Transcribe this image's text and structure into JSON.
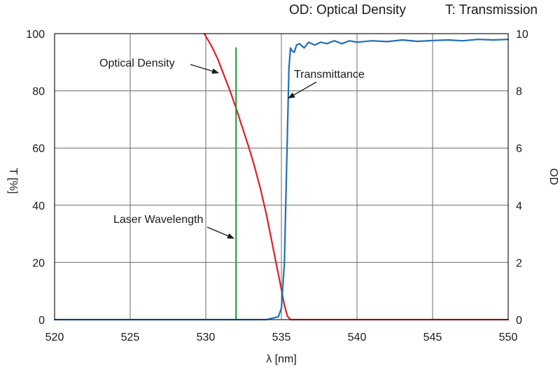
{
  "header": {
    "od_note": "OD: Optical Density",
    "t_note": "T: Transmission"
  },
  "chart_data": {
    "type": "line",
    "title": "",
    "xlabel": "λ [nm]",
    "ylabel_left": "T [%]",
    "ylabel_right": "OD",
    "xlim": [
      520,
      550
    ],
    "ylim_left": [
      0,
      100
    ],
    "ylim_right": [
      0,
      10
    ],
    "x_ticks": [
      "520",
      "525",
      "530",
      "535",
      "540",
      "545",
      "550"
    ],
    "y_left_ticks": [
      "0",
      "20",
      "40",
      "60",
      "80",
      "100"
    ],
    "y_right_ticks": [
      "0",
      "2",
      "4",
      "6",
      "8",
      "10"
    ],
    "grid": true,
    "series": [
      {
        "name": "Optical Density",
        "axis": "right",
        "color": "#e31e24",
        "x": [
          529.9,
          530.4,
          530.8,
          531.2,
          531.6,
          532.0,
          532.4,
          532.8,
          533.2,
          533.6,
          534.0,
          534.4,
          534.7,
          535.0,
          535.2,
          535.4,
          535.6,
          536.0,
          540.0,
          550.0
        ],
        "y": [
          10.0,
          9.55,
          9.1,
          8.55,
          8.0,
          7.4,
          6.75,
          6.1,
          5.4,
          4.6,
          3.7,
          2.65,
          1.85,
          1.05,
          0.5,
          0.12,
          0.0,
          0.0,
          0.0,
          0.0
        ]
      },
      {
        "name": "Transmittance",
        "axis": "left",
        "color": "#1f6fb8",
        "x": [
          520.0,
          534.0,
          534.8,
          535.0,
          535.2,
          535.35,
          535.5,
          535.6,
          535.7,
          535.85,
          536.0,
          536.2,
          536.5,
          536.8,
          537.2,
          537.6,
          538.0,
          538.5,
          539.0,
          539.5,
          540.0,
          541.0,
          542.0,
          543.0,
          544.0,
          545.0,
          546.0,
          547.0,
          548.0,
          549.0,
          550.0
        ],
        "y": [
          0,
          0,
          1,
          4,
          20,
          55,
          88,
          95,
          94,
          93.5,
          96,
          96.5,
          95,
          97,
          96,
          97,
          96.5,
          97.5,
          96.5,
          97.5,
          97,
          97.5,
          97.2,
          97.8,
          97.3,
          97.6,
          97.8,
          97.5,
          98,
          97.8,
          98
        ]
      },
      {
        "name": "Laser Wavelength",
        "axis": "left",
        "color": "#1a9a3c",
        "x": [
          532.0,
          532.0
        ],
        "y": [
          0,
          95
        ]
      }
    ],
    "annotations": [
      {
        "text": "Optical Density",
        "points_to": "Optical Density"
      },
      {
        "text": "Transmittance",
        "points_to": "Transmittance"
      },
      {
        "text": "Laser Wavelength",
        "points_to": "Laser Wavelength"
      }
    ]
  }
}
